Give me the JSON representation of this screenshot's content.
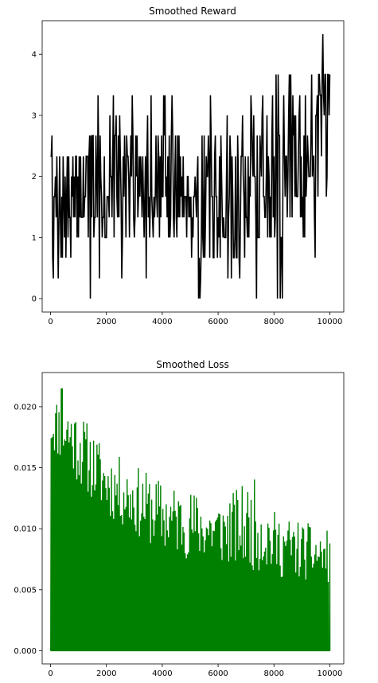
{
  "chart_data": [
    {
      "type": "line",
      "title": "Smoothed Reward",
      "xlabel": "",
      "ylabel": "",
      "xlim": [
        -300,
        10500
      ],
      "ylim": [
        -0.22,
        4.55
      ],
      "xticks": [
        0,
        2000,
        4000,
        6000,
        8000,
        10000
      ],
      "xtick_labels": [
        "0",
        "2000",
        "4000",
        "6000",
        "8000",
        "10000"
      ],
      "yticks": [
        0,
        1,
        2,
        3,
        4
      ],
      "ytick_labels": [
        "0",
        "1",
        "2",
        "3",
        "4"
      ],
      "grid": false,
      "color": "#000000",
      "x_step": 25,
      "segments": [
        {
          "x": [
            0,
            1000
          ],
          "y_min": 0.33,
          "y_max": 2.67,
          "low_outliers": [
            0,
            0.33
          ],
          "high_outliers": [
            2.33,
            2.67
          ]
        },
        {
          "x": [
            1000,
            2500
          ],
          "y_min": 0.33,
          "y_max": 3.33,
          "low_outliers": [
            0.33,
            0
          ],
          "high_outliers": [
            3.33,
            3.0
          ]
        },
        {
          "x": [
            2500,
            5000
          ],
          "y_min": 0.33,
          "y_max": 3.33,
          "low_outliers": [
            0,
            0.33
          ],
          "high_outliers": [
            3.33,
            3.0
          ]
        },
        {
          "x": [
            5000,
            7000
          ],
          "y_min": 0.0,
          "y_max": 3.33,
          "low_outliers": [
            0,
            0.33
          ],
          "high_outliers": [
            3.33,
            3.0
          ]
        },
        {
          "x": [
            7000,
            8500
          ],
          "y_min": 0.33,
          "y_max": 3.67,
          "low_outliers": [
            0,
            0.33
          ],
          "high_outliers": [
            3.67,
            3.33
          ]
        },
        {
          "x": [
            8500,
            10000
          ],
          "y_min": 0.67,
          "y_max": 4.33,
          "low_outliers": [
            0.67,
            1.0
          ],
          "high_outliers": [
            4.33,
            4.0,
            3.67
          ]
        }
      ],
      "last_point": {
        "x": 10000,
        "y": 3.67
      }
    },
    {
      "type": "line",
      "title": "Smoothed Loss",
      "xlabel": "",
      "ylabel": "",
      "xlim": [
        -300,
        10500
      ],
      "ylim": [
        -0.00108,
        0.0228
      ],
      "xticks": [
        0,
        2000,
        4000,
        6000,
        8000,
        10000
      ],
      "xtick_labels": [
        "0",
        "2000",
        "4000",
        "6000",
        "8000",
        "10000"
      ],
      "yticks": [
        0.0,
        0.005,
        0.01,
        0.015,
        0.02
      ],
      "ytick_labels": [
        "0.000",
        "0.005",
        "0.010",
        "0.015",
        "0.020"
      ],
      "grid": false,
      "color": "#008000",
      "x_step": 40,
      "pattern": "each cycle rises from 0.000 to a peak and drops back to 0.000",
      "peak_trend": [
        {
          "x": 0,
          "lower": 0.0165,
          "upper": 0.0205
        },
        {
          "x": 500,
          "lower": 0.015,
          "upper": 0.0215
        },
        {
          "x": 2000,
          "lower": 0.011,
          "upper": 0.0165
        },
        {
          "x": 4000,
          "lower": 0.008,
          "upper": 0.014
        },
        {
          "x": 6000,
          "lower": 0.007,
          "upper": 0.0125
        },
        {
          "x": 7400,
          "lower": 0.0065,
          "upper": 0.0142
        },
        {
          "x": 8000,
          "lower": 0.006,
          "upper": 0.0115
        },
        {
          "x": 10000,
          "lower": 0.0055,
          "upper": 0.0098
        }
      ],
      "max_point": {
        "x": 420,
        "y": 0.0215
      },
      "last_point": {
        "x": 10000,
        "y": 0.0088
      }
    }
  ]
}
